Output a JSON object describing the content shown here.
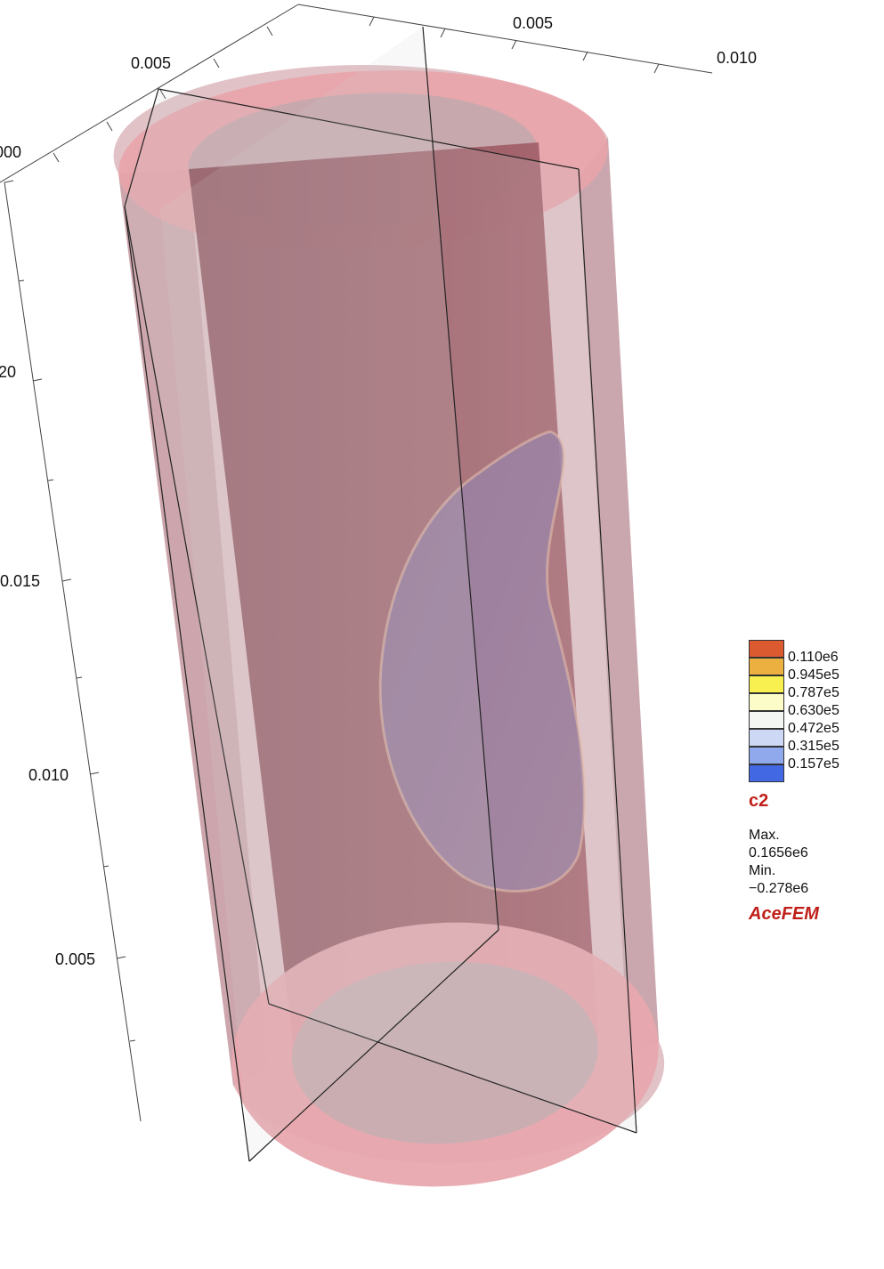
{
  "axes": {
    "top_left_ticks": [
      "0.005",
      "000"
    ],
    "top_right_ticks": [
      "0.005",
      "0.010"
    ],
    "vertical_ticks": [
      "20",
      "0.015",
      "0.010",
      "0.005"
    ]
  },
  "legend": {
    "variable": "c2",
    "entries": [
      {
        "label": "0.110e6",
        "color": "#dc5a30"
      },
      {
        "label": "0.945e5",
        "color": "#ebb040"
      },
      {
        "label": "0.787e5",
        "color": "#f8f050"
      },
      {
        "label": "0.630e5",
        "color": "#fcfcc8"
      },
      {
        "label": "0.472e5",
        "color": "#f4f6f4"
      },
      {
        "label": "0.315e5",
        "color": "#cdd8f4"
      },
      {
        "label": "0.157e5",
        "color": "#90a8ec"
      },
      {
        "label": "",
        "color": "#4268e4"
      }
    ],
    "max_label": "Max.",
    "max_value": "0.1656e6",
    "min_label": "Min.",
    "min_value": "−0.278e6",
    "brand": "AceFEM"
  },
  "colors": {
    "outer_shell": "#e7a8ae",
    "inner_body": "#9a5560",
    "inclusion": "#8c7098",
    "plane": "#c8c8c8"
  }
}
